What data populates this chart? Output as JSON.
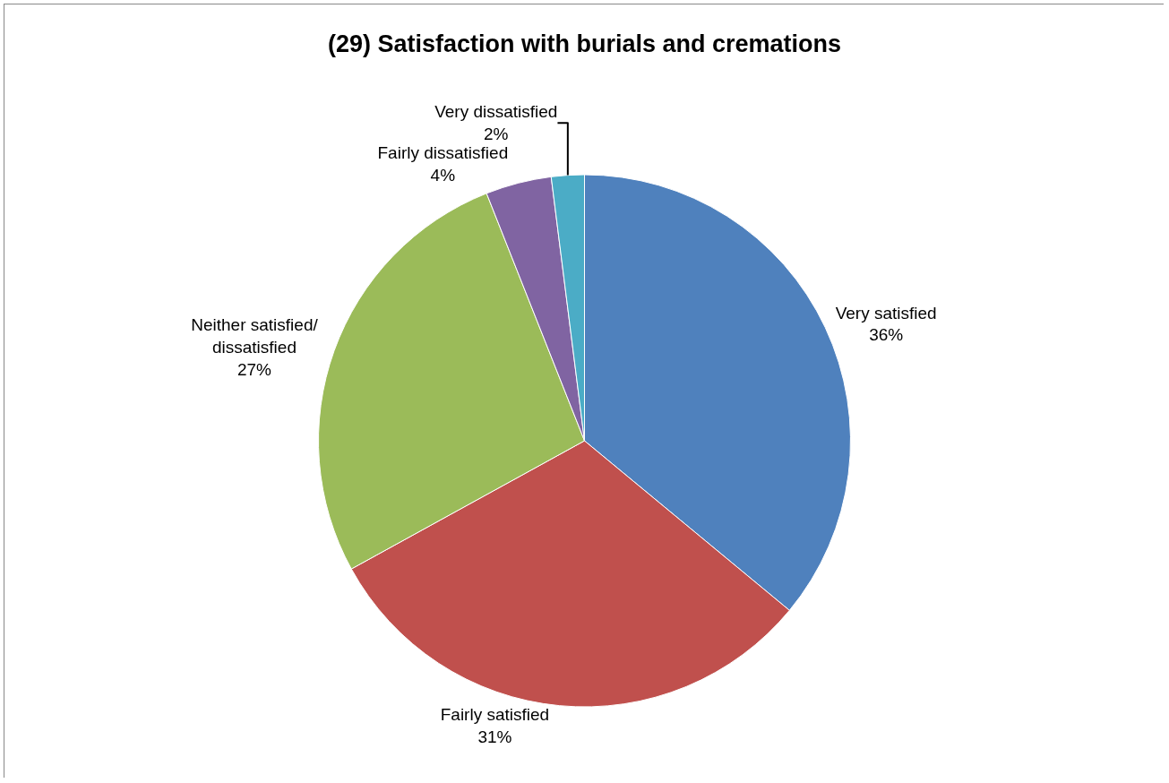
{
  "chart_data": {
    "type": "pie",
    "title": "(29) Satisfaction with burials and cremations",
    "categories": [
      "Very satisfied",
      "Fairly satisfied",
      "Neither satisfied/ dissatisfied",
      "Fairly dissatisfied",
      "Very dissatisfied"
    ],
    "values": [
      36,
      31,
      27,
      4,
      2
    ],
    "value_labels": [
      "36%",
      "31%",
      "27%",
      "4%",
      "2%"
    ],
    "colors": [
      "#4f81bd",
      "#c0504d",
      "#9bbb59",
      "#8064a2",
      "#4bacc6"
    ],
    "legend": false
  }
}
